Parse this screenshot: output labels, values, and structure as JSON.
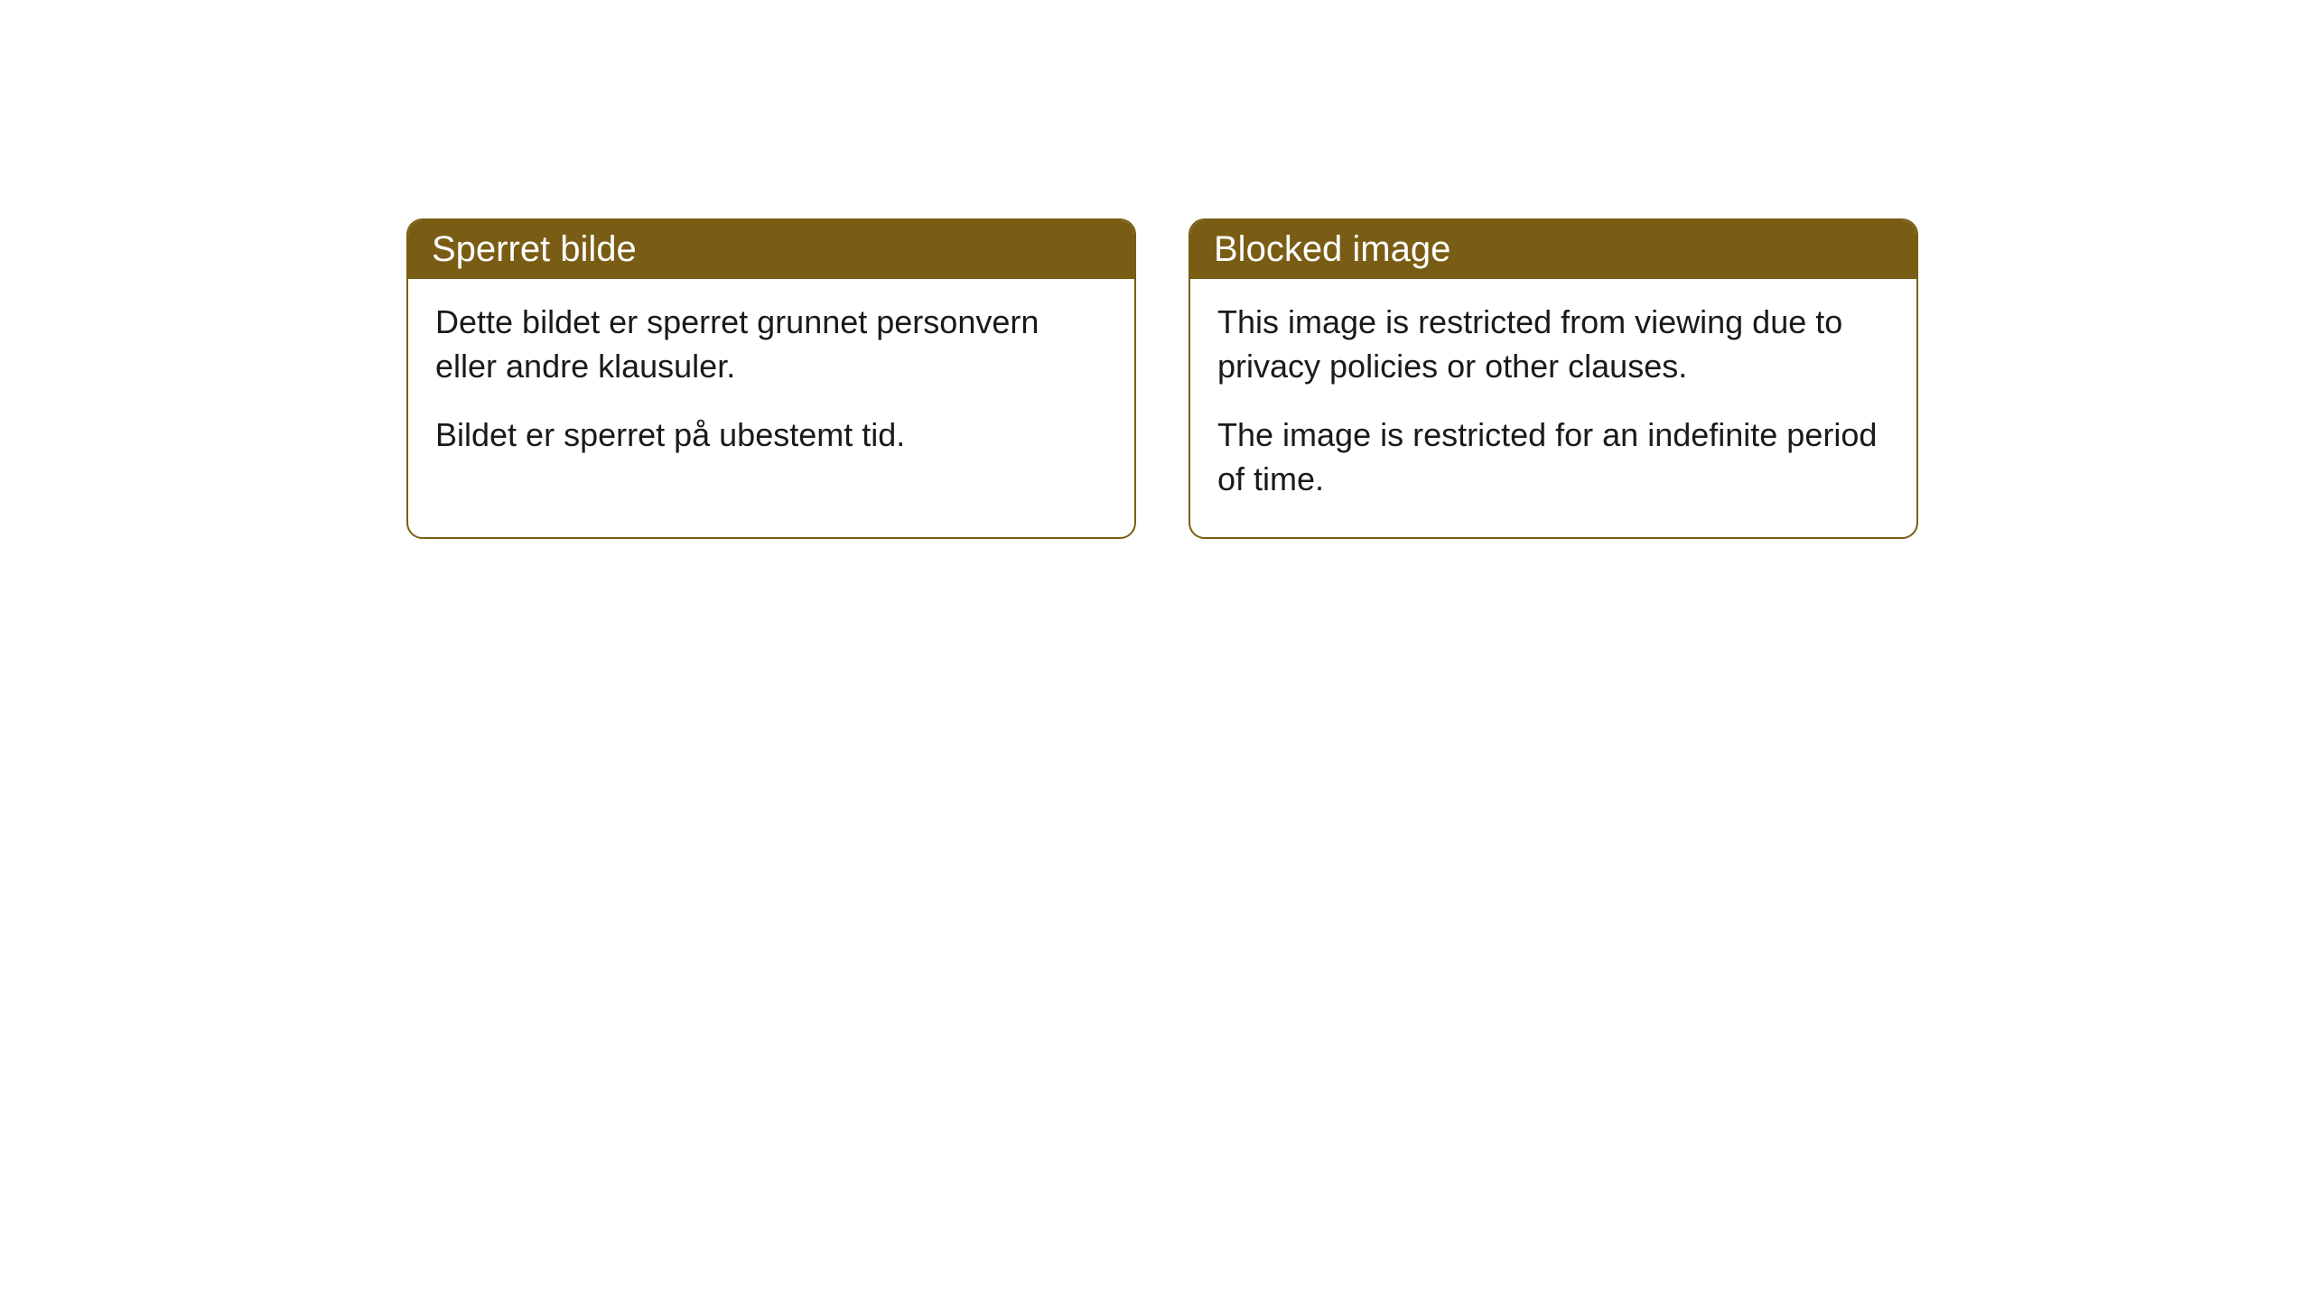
{
  "cards": [
    {
      "title": "Sperret bilde",
      "paragraph1": "Dette bildet er sperret grunnet personvern eller andre klausuler.",
      "paragraph2": "Bildet er sperret på ubestemt tid."
    },
    {
      "title": "Blocked image",
      "paragraph1": "This image is restricted from viewing due to privacy policies or other clauses.",
      "paragraph2": "The image is restricted for an indefinite period of time."
    }
  ],
  "style": {
    "header_bg": "#7a5d14",
    "header_text_color": "#ffffff",
    "border_color": "#7a5d14",
    "body_bg": "#ffffff",
    "body_text_color": "#1a1a1a",
    "border_radius": 18,
    "header_fontsize": 40,
    "body_fontsize": 36
  }
}
